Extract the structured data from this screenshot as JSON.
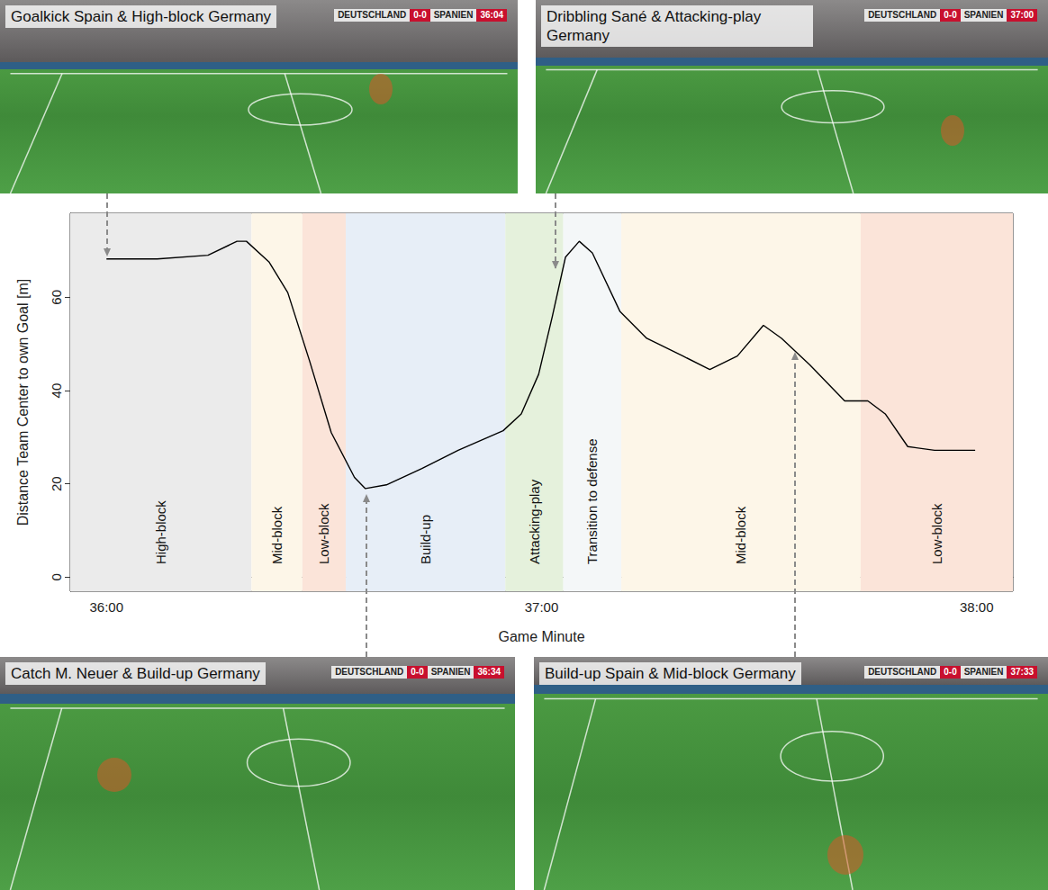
{
  "panels": [
    {
      "title": "Goalkick Spain & High-block Germany",
      "scoreboard": {
        "home": "DEUTSCHLAND",
        "score": "0-0",
        "away": "SPANIEN",
        "clock": "36:04"
      }
    },
    {
      "title": "Dribbling Sané & Attacking-play Germany",
      "scoreboard": {
        "home": "DEUTSCHLAND",
        "score": "0-0",
        "away": "SPANIEN",
        "clock": "37:00"
      }
    },
    {
      "title": "Catch M. Neuer & Build-up Germany",
      "scoreboard": {
        "home": "DEUTSCHLAND",
        "score": "0-0",
        "away": "SPANIEN",
        "clock": "36:34"
      }
    },
    {
      "title": "Build-up Spain & Mid-block Germany",
      "scoreboard": {
        "home": "DEUTSCHLAND",
        "score": "0-0",
        "away": "SPANIEN",
        "clock": "37:33"
      }
    }
  ],
  "chart_data": {
    "type": "line",
    "x_label": "Game Minute",
    "y_label": "Distance Team Center to own Goal [m]",
    "color": "#000000",
    "x": [
      2160,
      2167,
      2174,
      2178,
      2179.3,
      2182.4,
      2185,
      2188,
      2191,
      2194.2,
      2195.7,
      2198.6,
      2203.5,
      2208.5,
      2214.7,
      2217.2,
      2219.6,
      2221.5,
      2223.3,
      2225.2,
      2227,
      2230.8,
      2234.5,
      2239.5,
      2243.2,
      2247,
      2250.6,
      2253.1,
      2257,
      2261.8,
      2265,
      2267.4,
      2270.5,
      2274.2,
      2279.8
    ],
    "values": [
      68.2,
      68.2,
      69,
      72,
      72,
      67.6,
      61,
      46.4,
      31,
      21.4,
      19,
      19.8,
      23.3,
      27.2,
      31.4,
      35,
      43.5,
      56,
      68.6,
      72,
      69.5,
      57,
      51.2,
      47.4,
      44.5,
      47.4,
      54,
      51.2,
      45.5,
      37.8,
      37.8,
      35,
      28,
      27.2,
      27.2
    ],
    "xlim": [
      2155,
      2285
    ],
    "xticks": [
      {
        "value": 2160,
        "label": "36:00"
      },
      {
        "value": 2220,
        "label": "37:00"
      },
      {
        "value": 2280,
        "label": "38:00"
      }
    ],
    "ylim": [
      -3,
      78
    ],
    "yticks": [
      0,
      20,
      40,
      60
    ],
    "grid": false,
    "phases": [
      {
        "label": "High-block",
        "start": 2155,
        "end": 2180,
        "color": "#ebebeb"
      },
      {
        "label": "Mid-block",
        "start": 2180,
        "end": 2187,
        "color": "#fdf6e8"
      },
      {
        "label": "Low-block",
        "start": 2187,
        "end": 2193,
        "color": "#fbe4d9"
      },
      {
        "label": "Build-up",
        "start": 2193,
        "end": 2215,
        "color": "#e7eef7"
      },
      {
        "label": "Attacking-play",
        "start": 2215,
        "end": 2223,
        "color": "#e5f1dc"
      },
      {
        "label": "Transition to defense",
        "start": 2223,
        "end": 2231,
        "color": "#f4f7f8"
      },
      {
        "label": "Mid-block",
        "start": 2231,
        "end": 2264,
        "color": "#fdf6e8"
      },
      {
        "label": "Low-block",
        "start": 2264,
        "end": 2285,
        "color": "#fbe4d9"
      }
    ]
  }
}
